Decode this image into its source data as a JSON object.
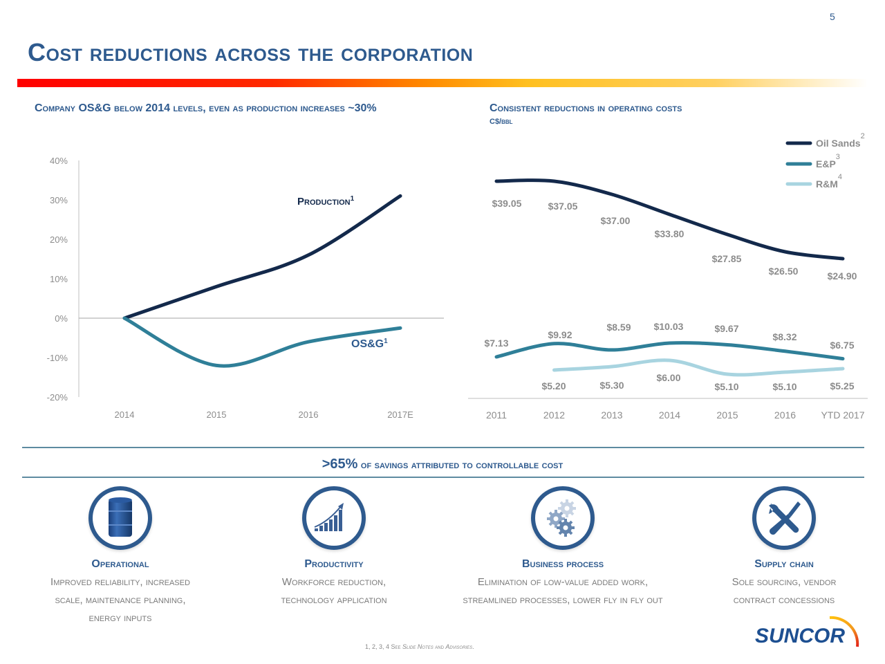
{
  "page": {
    "number": "5",
    "title": "Cost reductions across the corporation"
  },
  "left_section": {
    "title": "Company OS&G below 2014 levels, even as production increases ~30%"
  },
  "right_section": {
    "title": "Consistent reductions in operating costs",
    "unit": "C$/bbl"
  },
  "chart_data": [
    {
      "type": "line",
      "title": "Company OS&G below 2014 levels, even as production increases ~30%",
      "x": [
        "2014",
        "2015",
        "2016",
        "2017E"
      ],
      "xlabel": "",
      "ylabel": "",
      "ylim": [
        -20,
        40
      ],
      "yticks": [
        "40%",
        "30%",
        "20%",
        "10%",
        "0%",
        "-10%",
        "-20%"
      ],
      "ytick_values": [
        40,
        30,
        20,
        10,
        0,
        -10,
        -20
      ],
      "grid": false,
      "series": [
        {
          "name": "Production",
          "label": "Production",
          "footnote": "1",
          "color": "#13294b",
          "values": [
            0,
            8,
            16,
            31
          ]
        },
        {
          "name": "OS&G",
          "label": "OS&G",
          "footnote": "1",
          "color": "#2f7f98",
          "values": [
            0,
            -12,
            -6,
            -2.5
          ]
        }
      ]
    },
    {
      "type": "line",
      "title": "Consistent reductions in operating costs",
      "ylabel": "C$/bbl",
      "x": [
        "2011",
        "2012",
        "2013",
        "2014",
        "2015",
        "2016",
        "YTD 2017"
      ],
      "legend_position": "top-right",
      "grid": false,
      "series": [
        {
          "name": "Oil Sands",
          "footnote": "2",
          "color": "#13294b",
          "values": [
            39.05,
            37.05,
            37.0,
            33.8,
            27.85,
            26.5,
            24.9
          ],
          "labels": [
            "$39.05",
            "$37.05",
            "$37.00",
            "$33.80",
            "$27.85",
            "$26.50",
            "$24.90"
          ]
        },
        {
          "name": "E&P",
          "footnote": "3",
          "color": "#2f7f98",
          "values": [
            7.13,
            9.92,
            8.59,
            10.03,
            9.67,
            8.32,
            6.75
          ],
          "labels": [
            "$7.13",
            "$9.92",
            "$8.59",
            "$10.03",
            "$9.67",
            "$8.32",
            "$6.75"
          ]
        },
        {
          "name": "R&M",
          "footnote": "4",
          "color": "#a8d4e0",
          "values": [
            null,
            5.2,
            5.3,
            6.0,
            5.1,
            5.1,
            5.25
          ],
          "labels": [
            "",
            "$5.20",
            "$5.30",
            "$6.00",
            "$5.10",
            "$5.10",
            "$5.25"
          ]
        }
      ]
    }
  ],
  "banner": {
    "highlight": ">65%",
    "text": " of savings attributed to controllable cost"
  },
  "pillars": [
    {
      "icon": "oil-barrel-icon",
      "title": "Operational",
      "desc": [
        "Improved reliability, increased",
        "scale, maintenance planning,",
        "energy inputs"
      ]
    },
    {
      "icon": "growth-chart-icon",
      "title": "Productivity",
      "desc": [
        "Workforce reduction,",
        "technology application"
      ]
    },
    {
      "icon": "gears-icon",
      "title": "Business process",
      "desc": [
        "Elimination of low-value added work,",
        "streamlined processes, lower fly in fly out"
      ]
    },
    {
      "icon": "tools-icon",
      "title": "Supply chain",
      "desc": [
        "Sole sourcing, vendor",
        "contract concessions"
      ]
    }
  ],
  "footnote": {
    "prefix": "1, 2, 3, 4 See ",
    "link1": "Slide Notes",
    "mid": " and ",
    "link2": "Advisories",
    "suffix": "."
  },
  "logo": {
    "text": "SUNCOR"
  },
  "colors": {
    "brand_blue": "#2e5a8e",
    "navy": "#13294b",
    "teal": "#2f7f98",
    "light_blue": "#a8d4e0",
    "gray_text": "#7a7a7a"
  }
}
